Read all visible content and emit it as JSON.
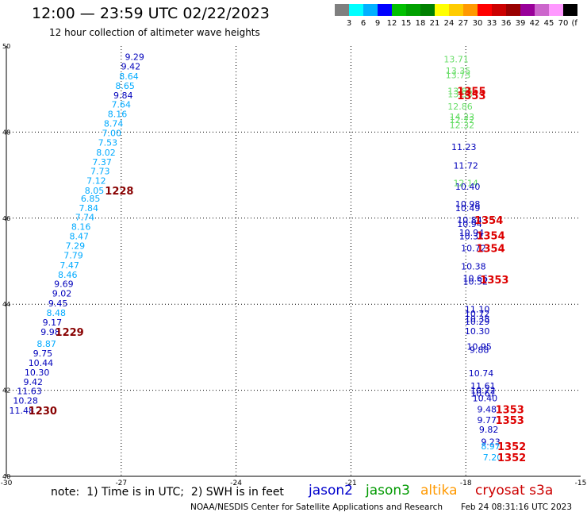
{
  "header": {
    "title": "12:00 — 23:59 UTC 02/22/2023",
    "subtitle": "12 hour collection of altimeter wave heights"
  },
  "colorbar": {
    "labels": [
      "3",
      "6",
      "9",
      "12",
      "15",
      "18",
      "21",
      "24",
      "27",
      "30",
      "33",
      "36",
      "39",
      "42",
      "45",
      "70",
      "(ft)"
    ],
    "colors": [
      "#7f7f7f",
      "#00ffff",
      "#00b0ff",
      "#0000ff",
      "#00c000",
      "#00a000",
      "#008000",
      "#ffff00",
      "#ffcc00",
      "#ff9900",
      "#ff0000",
      "#cc0000",
      "#990000",
      "#990099",
      "#cc66cc",
      "#ff99ff",
      "#000000"
    ]
  },
  "footer": {
    "note": "note:  1) Time is in UTC;  2) SWH is in feet",
    "credit": "NOAA/NESDIS Center for Satellite Applications and Research",
    "timestamp": "Feb 24 08:31:16 UTC 2023"
  },
  "satellites": [
    {
      "name": "jason2",
      "color": "#0000cc"
    },
    {
      "name": "jason3",
      "color": "#009900"
    },
    {
      "name": "altika",
      "color": "#ff9900"
    },
    {
      "name": "cryosat s3a",
      "color": "#cc0000"
    }
  ],
  "chart_data": {
    "type": "scatter",
    "xlim": [
      -30,
      -15
    ],
    "ylim": [
      40,
      50
    ],
    "x_ticks": [
      "-30",
      "-27",
      "-24",
      "-21",
      "-18",
      "-15"
    ],
    "y_ticks": [
      "40",
      "42",
      "44",
      "46",
      "48",
      "50"
    ],
    "grid": true,
    "swh_colors": {
      "light_blue": "#00aaff",
      "dark_blue": "#0000bb",
      "green": "#66dd66",
      "time_dark_red": "#880000",
      "time_red": "#dd0000"
    },
    "points": [
      {
        "x": -26.65,
        "y": 49.75,
        "label": "9.29",
        "color": "dark_blue"
      },
      {
        "x": -26.75,
        "y": 49.53,
        "label": "9.42",
        "color": "dark_blue"
      },
      {
        "x": -26.8,
        "y": 49.3,
        "label": "8.64",
        "color": "light_blue"
      },
      {
        "x": -26.9,
        "y": 49.08,
        "label": "8.65",
        "color": "light_blue"
      },
      {
        "x": -26.95,
        "y": 48.86,
        "label": "9.84",
        "color": "dark_blue"
      },
      {
        "x": -27.0,
        "y": 48.64,
        "label": "7.64",
        "color": "light_blue"
      },
      {
        "x": -27.1,
        "y": 48.42,
        "label": "8.16",
        "color": "light_blue"
      },
      {
        "x": -27.2,
        "y": 48.2,
        "label": "8.74",
        "color": "light_blue"
      },
      {
        "x": -27.25,
        "y": 47.98,
        "label": "7.00",
        "color": "light_blue"
      },
      {
        "x": -27.35,
        "y": 47.76,
        "label": "7.53",
        "color": "light_blue"
      },
      {
        "x": -27.4,
        "y": 47.53,
        "label": "8.02",
        "color": "light_blue"
      },
      {
        "x": -27.5,
        "y": 47.31,
        "label": "7.37",
        "color": "light_blue"
      },
      {
        "x": -27.55,
        "y": 47.09,
        "label": "7.73",
        "color": "light_blue"
      },
      {
        "x": -27.65,
        "y": 46.87,
        "label": "7.12",
        "color": "light_blue"
      },
      {
        "x": -27.7,
        "y": 46.64,
        "label": "8.05",
        "color": "light_blue"
      },
      {
        "x": -27.8,
        "y": 46.46,
        "label": "6.85",
        "color": "light_blue"
      },
      {
        "x": -27.85,
        "y": 46.24,
        "label": "7.84",
        "color": "light_blue"
      },
      {
        "x": -27.95,
        "y": 46.02,
        "label": "7.74",
        "color": "light_blue"
      },
      {
        "x": -28.05,
        "y": 45.8,
        "label": "8.16",
        "color": "light_blue"
      },
      {
        "x": -28.1,
        "y": 45.58,
        "label": "8.47",
        "color": "light_blue"
      },
      {
        "x": -28.2,
        "y": 45.36,
        "label": "7.29",
        "color": "light_blue"
      },
      {
        "x": -28.25,
        "y": 45.14,
        "label": "7.79",
        "color": "light_blue"
      },
      {
        "x": -28.35,
        "y": 44.91,
        "label": "7.47",
        "color": "light_blue"
      },
      {
        "x": -28.4,
        "y": 44.69,
        "label": "8.46",
        "color": "light_blue"
      },
      {
        "x": -28.5,
        "y": 44.47,
        "label": "9.69",
        "color": "dark_blue"
      },
      {
        "x": -28.55,
        "y": 44.25,
        "label": "9.02",
        "color": "dark_blue"
      },
      {
        "x": -28.65,
        "y": 44.02,
        "label": "9.45",
        "color": "dark_blue"
      },
      {
        "x": -28.7,
        "y": 43.8,
        "label": "8.48",
        "color": "light_blue"
      },
      {
        "x": -28.8,
        "y": 43.58,
        "label": "9.17",
        "color": "dark_blue"
      },
      {
        "x": -28.85,
        "y": 43.36,
        "label": "9.98",
        "color": "dark_blue"
      },
      {
        "x": -28.95,
        "y": 43.08,
        "label": "8.87",
        "color": "light_blue"
      },
      {
        "x": -29.05,
        "y": 42.86,
        "label": "9.75",
        "color": "dark_blue"
      },
      {
        "x": -29.1,
        "y": 42.64,
        "label": "10.44",
        "color": "dark_blue"
      },
      {
        "x": -29.2,
        "y": 42.42,
        "label": "10.30",
        "color": "dark_blue"
      },
      {
        "x": -29.3,
        "y": 42.2,
        "label": "9.42",
        "color": "dark_blue"
      },
      {
        "x": -29.4,
        "y": 41.98,
        "label": "11.63",
        "color": "dark_blue"
      },
      {
        "x": -29.5,
        "y": 41.76,
        "label": "10.28",
        "color": "dark_blue"
      },
      {
        "x": -29.6,
        "y": 41.53,
        "label": "11.48",
        "color": "dark_blue"
      },
      {
        "x": -18.25,
        "y": 49.7,
        "label": "13.71",
        "color": "green"
      },
      {
        "x": -18.2,
        "y": 49.43,
        "label": "13.35",
        "color": "green"
      },
      {
        "x": -18.2,
        "y": 49.33,
        "label": "13.73",
        "color": "green"
      },
      {
        "x": -18.15,
        "y": 48.96,
        "label": "13.85",
        "color": "green"
      },
      {
        "x": -18.15,
        "y": 48.88,
        "label": "13.33",
        "color": "green"
      },
      {
        "x": -18.15,
        "y": 48.6,
        "label": "12.86",
        "color": "green"
      },
      {
        "x": -18.1,
        "y": 48.36,
        "label": "14.23",
        "color": "green"
      },
      {
        "x": -18.1,
        "y": 48.28,
        "label": "12.72",
        "color": "green"
      },
      {
        "x": -18.1,
        "y": 48.16,
        "label": "12.32",
        "color": "green"
      },
      {
        "x": -18.05,
        "y": 47.66,
        "label": "11.23",
        "color": "dark_blue"
      },
      {
        "x": -18.0,
        "y": 47.22,
        "label": "11.72",
        "color": "dark_blue"
      },
      {
        "x": -18.0,
        "y": 46.82,
        "label": "12.14",
        "color": "green"
      },
      {
        "x": -17.95,
        "y": 46.73,
        "label": "10.40",
        "color": "dark_blue"
      },
      {
        "x": -17.95,
        "y": 46.33,
        "label": "10.98",
        "color": "dark_blue"
      },
      {
        "x": -17.95,
        "y": 46.24,
        "label": "10.49",
        "color": "dark_blue"
      },
      {
        "x": -17.9,
        "y": 45.96,
        "label": "10.84",
        "color": "dark_blue"
      },
      {
        "x": -17.9,
        "y": 45.87,
        "label": "10.94",
        "color": "dark_blue"
      },
      {
        "x": -17.85,
        "y": 45.66,
        "label": "10.94",
        "color": "dark_blue"
      },
      {
        "x": -17.85,
        "y": 45.58,
        "label": "10.31",
        "color": "dark_blue"
      },
      {
        "x": -17.8,
        "y": 45.3,
        "label": "10.72",
        "color": "dark_blue"
      },
      {
        "x": -17.8,
        "y": 44.88,
        "label": "10.38",
        "color": "dark_blue"
      },
      {
        "x": -17.75,
        "y": 44.6,
        "label": "10.66",
        "color": "dark_blue"
      },
      {
        "x": -17.75,
        "y": 44.53,
        "label": "10.52",
        "color": "dark_blue"
      },
      {
        "x": -17.7,
        "y": 43.88,
        "label": "11.10",
        "color": "dark_blue"
      },
      {
        "x": -17.7,
        "y": 43.78,
        "label": "10.72",
        "color": "dark_blue"
      },
      {
        "x": -17.7,
        "y": 43.66,
        "label": "10.38",
        "color": "dark_blue"
      },
      {
        "x": -17.7,
        "y": 43.6,
        "label": "10.29",
        "color": "dark_blue"
      },
      {
        "x": -17.7,
        "y": 43.38,
        "label": "10.30",
        "color": "dark_blue"
      },
      {
        "x": -17.65,
        "y": 43.02,
        "label": "10.95",
        "color": "dark_blue"
      },
      {
        "x": -17.65,
        "y": 42.94,
        "label": "9.88",
        "color": "dark_blue"
      },
      {
        "x": -17.6,
        "y": 42.4,
        "label": "10.74",
        "color": "dark_blue"
      },
      {
        "x": -17.55,
        "y": 42.1,
        "label": "11.61",
        "color": "dark_blue"
      },
      {
        "x": -17.55,
        "y": 42.0,
        "label": "10.72",
        "color": "dark_blue"
      },
      {
        "x": -17.55,
        "y": 41.93,
        "label": "10.67",
        "color": "dark_blue"
      },
      {
        "x": -17.5,
        "y": 41.82,
        "label": "10.40",
        "color": "dark_blue"
      },
      {
        "x": -17.45,
        "y": 41.56,
        "label": "9.48",
        "color": "dark_blue"
      },
      {
        "x": -17.45,
        "y": 41.31,
        "label": "9.77",
        "color": "dark_blue"
      },
      {
        "x": -17.4,
        "y": 41.09,
        "label": "9.82",
        "color": "dark_blue"
      },
      {
        "x": -17.35,
        "y": 40.8,
        "label": "9.23",
        "color": "dark_blue"
      },
      {
        "x": -17.35,
        "y": 40.7,
        "label": "8.97",
        "color": "light_blue"
      },
      {
        "x": -17.3,
        "y": 40.44,
        "label": "7.20",
        "color": "light_blue"
      }
    ],
    "time_labels": [
      {
        "x": -27.05,
        "y": 46.64,
        "label": "1228",
        "color": "time_dark_red"
      },
      {
        "x": -28.35,
        "y": 43.36,
        "label": "1229",
        "color": "time_dark_red"
      },
      {
        "x": -29.05,
        "y": 41.53,
        "label": "1230",
        "color": "time_dark_red"
      },
      {
        "x": -17.85,
        "y": 48.96,
        "label": "1355",
        "color": "time_red"
      },
      {
        "x": -17.85,
        "y": 48.86,
        "label": "1353",
        "color": "time_red"
      },
      {
        "x": -17.4,
        "y": 45.96,
        "label": "1354",
        "color": "time_red"
      },
      {
        "x": -17.35,
        "y": 45.6,
        "label": "1354",
        "color": "time_red"
      },
      {
        "x": -17.35,
        "y": 45.3,
        "label": "1354",
        "color": "time_red"
      },
      {
        "x": -17.25,
        "y": 44.58,
        "label": "1353",
        "color": "time_red"
      },
      {
        "x": -16.85,
        "y": 41.56,
        "label": "1353",
        "color": "time_red"
      },
      {
        "x": -16.85,
        "y": 41.31,
        "label": "1353",
        "color": "time_red"
      },
      {
        "x": -16.8,
        "y": 40.7,
        "label": "1352",
        "color": "time_red"
      },
      {
        "x": -16.8,
        "y": 40.44,
        "label": "1352",
        "color": "time_red"
      }
    ]
  }
}
